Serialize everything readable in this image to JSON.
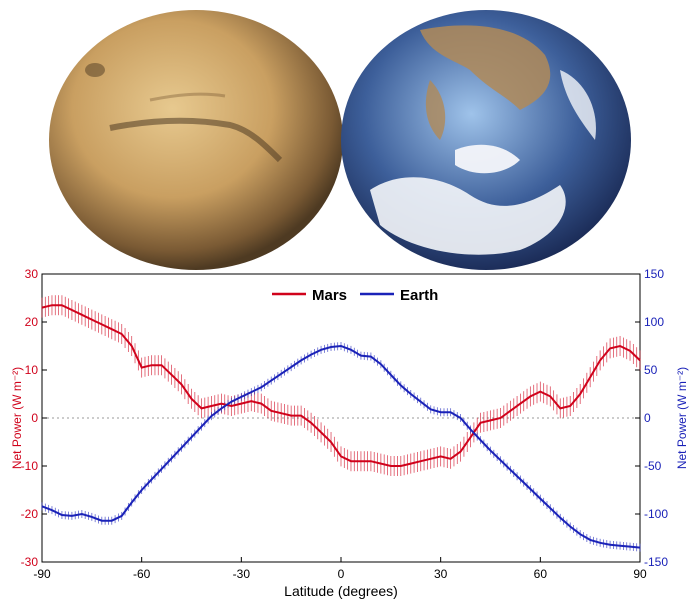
{
  "images": [
    {
      "name": "mars-globe",
      "colors": {
        "light": "#e7c98f",
        "mid": "#c99f61",
        "dark": "#7a5a34",
        "shade": "#4e3a22"
      }
    },
    {
      "name": "earth-globe",
      "colors": {
        "light": "#9fc3ea",
        "mid": "#3d5f9a",
        "dark": "#1a2a55",
        "cloud": "#f4f6fa",
        "land": "#b08a58"
      }
    }
  ],
  "chart_data": {
    "type": "line",
    "xlabel": "Latitude (degrees)",
    "ylabel_left": "Net Power (W m⁻²)",
    "ylabel_right": "Net Power (W m⁻²)",
    "xlim": [
      -90,
      90
    ],
    "xticks": [
      "-90",
      "-60",
      "-30",
      "0",
      "30",
      "60",
      "90"
    ],
    "y_left_lim": [
      -30,
      30
    ],
    "y_left_ticks": [
      "-30",
      "-20",
      "-10",
      "0",
      "10",
      "20",
      "30"
    ],
    "y_right_lim": [
      -150,
      150
    ],
    "y_right_ticks": [
      "-150",
      "-100",
      "-50",
      "0",
      "50",
      "100",
      "150"
    ],
    "grid": false,
    "zero_line": "dotted",
    "legend_position": "top-center",
    "series": [
      {
        "name": "Mars",
        "axis": "left",
        "color": "#d0021b",
        "x": [
          -90,
          -87,
          -84,
          -81,
          -78,
          -75,
          -72,
          -69,
          -66,
          -63,
          -60,
          -57,
          -54,
          -51,
          -48,
          -45,
          -42,
          -39,
          -36,
          -33,
          -30,
          -27,
          -24,
          -21,
          -18,
          -15,
          -12,
          -9,
          -6,
          -3,
          0,
          3,
          6,
          9,
          12,
          15,
          18,
          21,
          24,
          27,
          30,
          33,
          36,
          39,
          42,
          45,
          48,
          51,
          54,
          57,
          60,
          63,
          66,
          69,
          72,
          75,
          78,
          81,
          84,
          87,
          90
        ],
        "y": [
          23,
          23.5,
          23.5,
          22.5,
          21.5,
          20.5,
          19.5,
          18.5,
          17.5,
          15,
          10.5,
          11,
          11,
          9,
          7,
          4,
          2,
          2.5,
          3,
          2.5,
          3,
          3.5,
          3,
          1.5,
          1,
          0.5,
          0.5,
          -1,
          -3,
          -5,
          -8,
          -9,
          -9,
          -9,
          -9.5,
          -10,
          -10,
          -9.5,
          -9,
          -8.5,
          -8,
          -8.5,
          -7,
          -4,
          -1,
          -0.5,
          0,
          1.5,
          3,
          4.5,
          5.5,
          4.5,
          2,
          2.5,
          5,
          8.5,
          12,
          14.5,
          15,
          14,
          12
        ]
      },
      {
        "name": "Earth",
        "axis": "right",
        "color": "#1a22b8",
        "x": [
          -90,
          -87,
          -84,
          -81,
          -78,
          -75,
          -72,
          -69,
          -66,
          -63,
          -60,
          -57,
          -54,
          -51,
          -48,
          -45,
          -42,
          -39,
          -36,
          -33,
          -30,
          -27,
          -24,
          -21,
          -18,
          -15,
          -12,
          -9,
          -6,
          -3,
          0,
          3,
          6,
          9,
          12,
          15,
          18,
          21,
          24,
          27,
          30,
          33,
          36,
          39,
          42,
          45,
          48,
          51,
          54,
          57,
          60,
          63,
          66,
          69,
          72,
          75,
          78,
          81,
          84,
          87,
          90
        ],
        "y": [
          -92,
          -96,
          -101,
          -102,
          -100,
          -103,
          -107,
          -107,
          -102,
          -88,
          -75,
          -64,
          -53,
          -42,
          -31,
          -20,
          -9,
          2,
          10,
          17,
          22,
          27,
          32,
          39,
          46,
          53,
          60,
          66,
          71,
          74,
          75,
          71,
          65,
          64,
          56,
          45,
          34,
          25,
          17,
          9,
          6,
          6,
          0,
          -12,
          -23,
          -34,
          -44,
          -54,
          -64,
          -74,
          -84,
          -94,
          -104,
          -113,
          -121,
          -127,
          -130,
          -132,
          -133,
          -134,
          -135
        ]
      }
    ]
  }
}
